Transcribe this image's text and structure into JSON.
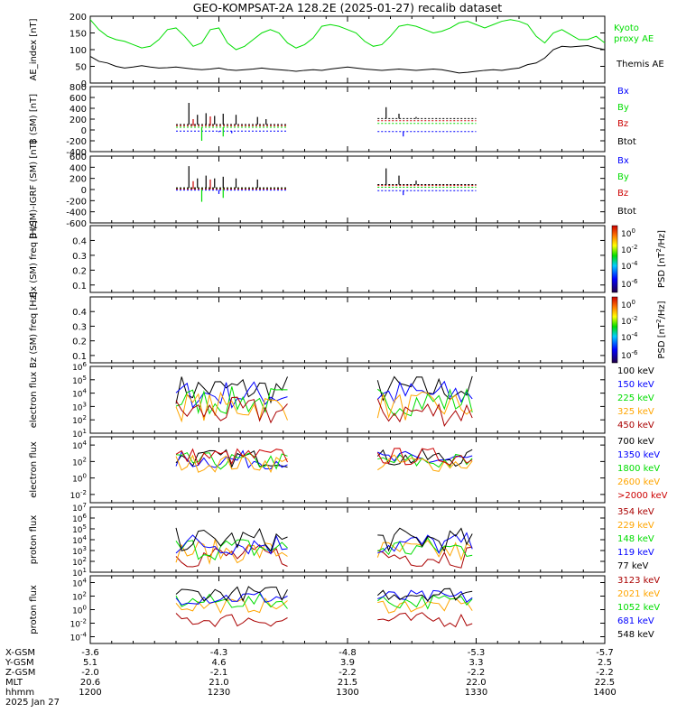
{
  "title": "GEO-KOMPSAT-2A 128.2E (2025-01-27) recalib dataset",
  "colors": {
    "black": "#000000",
    "green": "#00dd00",
    "blue": "#0000ff",
    "red": "#cc0000",
    "orange": "#ffa500",
    "darkred": "#aa0000"
  },
  "time_axis": {
    "ephemeris_labels": [
      "X-GSM",
      "Y-GSM",
      "Z-GSM",
      "MLT",
      "hhmm",
      "2025 Jan 27"
    ],
    "columns": [
      {
        "values": [
          "-3.6",
          "5.1",
          "-2.0",
          "20.6",
          "1200"
        ]
      },
      {
        "values": [
          "-4.3",
          "4.6",
          "-2.1",
          "21.0",
          "1230"
        ]
      },
      {
        "values": [
          "-4.8",
          "3.9",
          "-2.2",
          "21.5",
          "1300"
        ]
      },
      {
        "values": [
          "-5.3",
          "3.3",
          "-2.2",
          "22.0",
          "1330"
        ]
      },
      {
        "values": [
          "-5.7",
          "2.5",
          "-2.2",
          "22.5",
          "1400"
        ]
      }
    ]
  },
  "chart_data": [
    {
      "type": "line",
      "ylabel": "AE_index [nT]",
      "ylim": [
        0,
        200
      ],
      "yticks": [
        "0",
        "50",
        "100",
        "150",
        "200"
      ],
      "series": [
        {
          "name": "Kyoto proxy AE",
          "color": "#00dd00",
          "x": [
            0,
            2,
            4,
            6,
            8,
            10,
            12,
            14,
            16,
            18,
            20,
            22,
            24,
            26,
            28,
            30,
            32,
            34,
            36,
            38,
            40,
            42,
            44,
            46,
            48,
            50,
            52,
            54,
            56,
            58,
            60,
            62,
            64,
            66,
            68,
            70,
            72,
            74,
            76,
            78,
            80,
            82,
            84,
            86,
            88,
            90,
            92,
            94,
            96,
            98,
            100,
            102,
            104,
            106,
            108,
            110,
            112,
            114,
            116,
            118,
            120
          ],
          "values": [
            190,
            160,
            140,
            130,
            125,
            115,
            105,
            110,
            130,
            160,
            165,
            140,
            110,
            120,
            160,
            165,
            120,
            100,
            110,
            130,
            150,
            160,
            150,
            120,
            105,
            115,
            135,
            170,
            175,
            170,
            160,
            150,
            125,
            110,
            115,
            140,
            170,
            175,
            170,
            160,
            150,
            155,
            165,
            180,
            185,
            175,
            165,
            175,
            185,
            190,
            185,
            175,
            140,
            120,
            150,
            160,
            145,
            130,
            130,
            140,
            120
          ]
        },
        {
          "name": "Themis AE",
          "color": "#000000",
          "x": [
            0,
            2,
            4,
            6,
            8,
            10,
            12,
            14,
            16,
            18,
            20,
            22,
            24,
            26,
            28,
            30,
            32,
            34,
            36,
            38,
            40,
            42,
            44,
            46,
            48,
            50,
            52,
            54,
            56,
            58,
            60,
            62,
            64,
            66,
            68,
            70,
            72,
            74,
            76,
            78,
            80,
            82,
            84,
            86,
            88,
            90,
            92,
            94,
            96,
            98,
            100,
            102,
            104,
            106,
            108,
            110,
            112,
            114,
            116,
            118,
            120
          ],
          "values": [
            80,
            65,
            60,
            50,
            45,
            48,
            52,
            48,
            45,
            46,
            48,
            45,
            42,
            40,
            42,
            45,
            40,
            38,
            40,
            42,
            45,
            42,
            40,
            38,
            35,
            38,
            40,
            38,
            42,
            45,
            48,
            45,
            42,
            40,
            38,
            40,
            42,
            40,
            38,
            40,
            42,
            40,
            35,
            30,
            32,
            35,
            38,
            40,
            38,
            42,
            45,
            55,
            60,
            75,
            100,
            110,
            108,
            110,
            112,
            105,
            100
          ]
        }
      ]
    },
    {
      "type": "line",
      "ylabel": "B (SM) [nT]",
      "ylim": [
        -400,
        800
      ],
      "yticks": [
        "-400",
        "-200",
        "0",
        "200",
        "400",
        "600",
        "800"
      ],
      "segments": [
        [
          20,
          46
        ],
        [
          67,
          90
        ]
      ],
      "series": [
        {
          "name": "Bx",
          "color": "#0000ff",
          "levels": [
            -20,
            -30
          ],
          "spikes": [
            [
              30,
              -40
            ],
            [
              33,
              -60
            ],
            [
              73,
              -120
            ]
          ]
        },
        {
          "name": "By",
          "color": "#00dd00",
          "levels": [
            50,
            120
          ],
          "spikes": [
            [
              26,
              -200
            ],
            [
              31,
              -120
            ]
          ]
        },
        {
          "name": "Bz",
          "color": "#cc0000",
          "levels": [
            80,
            170
          ],
          "spikes": [
            [
              24,
              200
            ],
            [
              28,
              250
            ]
          ]
        },
        {
          "name": "Btot",
          "color": "#000000",
          "levels": [
            100,
            210
          ],
          "spikes": [
            [
              23,
              500
            ],
            [
              25,
              280
            ],
            [
              27,
              310
            ],
            [
              29,
              260
            ],
            [
              31,
              300
            ],
            [
              34,
              280
            ],
            [
              39,
              240
            ],
            [
              41,
              200
            ],
            [
              69,
              420
            ],
            [
              72,
              300
            ],
            [
              76,
              240
            ]
          ]
        }
      ]
    },
    {
      "type": "line",
      "ylabel": "B (SM)-IGRF (SM) [nT]",
      "ylim": [
        -600,
        600
      ],
      "yticks": [
        "-600",
        "-400",
        "-200",
        "0",
        "200",
        "400",
        "600"
      ],
      "segments": [
        [
          20,
          46
        ],
        [
          67,
          90
        ]
      ],
      "series": [
        {
          "name": "Bx",
          "color": "#0000ff",
          "levels": [
            -10,
            -20
          ],
          "spikes": [
            [
              30,
              -80
            ],
            [
              73,
              -100
            ]
          ]
        },
        {
          "name": "By",
          "color": "#00dd00",
          "levels": [
            20,
            40
          ],
          "spikes": [
            [
              26,
              -220
            ],
            [
              31,
              -150
            ]
          ]
        },
        {
          "name": "Bz",
          "color": "#cc0000",
          "levels": [
            10,
            70
          ],
          "spikes": [
            [
              24,
              150
            ],
            [
              28,
              180
            ]
          ]
        },
        {
          "name": "Btot",
          "color": "#000000",
          "levels": [
            30,
            90
          ],
          "spikes": [
            [
              23,
              420
            ],
            [
              25,
              200
            ],
            [
              27,
              250
            ],
            [
              29,
              200
            ],
            [
              31,
              230
            ],
            [
              34,
              200
            ],
            [
              39,
              180
            ],
            [
              69,
              380
            ],
            [
              72,
              250
            ],
            [
              76,
              160
            ]
          ]
        }
      ]
    },
    {
      "type": "heatmap",
      "ylabel": "Bx (SM) freq [Hz]",
      "ylim": [
        0.05,
        0.5
      ],
      "yticks": [
        "0.1",
        "0.2",
        "0.3",
        "0.4"
      ],
      "colorbar": {
        "label": "PSD [nT^2/Hz]",
        "ticks": [
          "10^0",
          "10^-2",
          "10^-4",
          "10^-6"
        ]
      }
    },
    {
      "type": "heatmap",
      "ylabel": "Bz (SM) freq [Hz]",
      "ylim": [
        0.05,
        0.5
      ],
      "yticks": [
        "0.1",
        "0.2",
        "0.3",
        "0.4"
      ],
      "colorbar": {
        "label": "PSD [nT^2/Hz]",
        "ticks": [
          "10^0",
          "10^-2",
          "10^-4",
          "10^-6"
        ]
      }
    },
    {
      "type": "line",
      "ylabel": "electron flux",
      "ylog": [
        1,
        6
      ],
      "yticks": [
        "10^1",
        "10^2",
        "10^3",
        "10^4",
        "10^5",
        "10^6"
      ],
      "segments": [
        [
          20,
          46
        ],
        [
          67,
          90
        ]
      ],
      "series": [
        {
          "name": "100 keV",
          "color": "#000000",
          "mean": 4.3
        },
        {
          "name": "150 keV",
          "color": "#0000ff",
          "mean": 3.9
        },
        {
          "name": "225 keV",
          "color": "#00dd00",
          "mean": 3.4
        },
        {
          "name": "325 keV",
          "color": "#ffa500",
          "mean": 3.0
        },
        {
          "name": "450 keV",
          "color": "#aa0000",
          "mean": 2.6
        }
      ]
    },
    {
      "type": "line",
      "ylabel": "electron flux",
      "ylog": [
        -3,
        5
      ],
      "yticks": [
        "10^-2",
        "10^0",
        "10^2",
        "10^4"
      ],
      "segments": [
        [
          20,
          46
        ],
        [
          67,
          90
        ]
      ],
      "series": [
        {
          "name": "700 keV",
          "color": "#000000",
          "mean": 2.4
        },
        {
          "name": "1350 keV",
          "color": "#0000ff",
          "mean": 2.2
        },
        {
          "name": "1800 keV",
          "color": "#00dd00",
          "mean": 2.0
        },
        {
          "name": "2600 keV",
          "color": "#ffa500",
          "mean": 1.8
        },
        {
          "name": ">2000 keV",
          "color": "#cc0000",
          "mean": 2.6
        }
      ]
    },
    {
      "type": "line",
      "ylabel": "proton flux",
      "ylog": [
        1,
        7
      ],
      "yticks": [
        "10^1",
        "10^2",
        "10^3",
        "10^4",
        "10^5",
        "10^6",
        "10^7"
      ],
      "segments": [
        [
          20,
          46
        ],
        [
          67,
          90
        ]
      ],
      "series": [
        {
          "name": "354 keV",
          "color": "#aa0000",
          "mean": 2.5
        },
        {
          "name": "229 keV",
          "color": "#ffa500",
          "mean": 2.9
        },
        {
          "name": "148 keV",
          "color": "#00dd00",
          "mean": 3.2
        },
        {
          "name": "119 keV",
          "color": "#0000ff",
          "mean": 3.6
        },
        {
          "name": "77 keV",
          "color": "#000000",
          "mean": 4.0
        }
      ]
    },
    {
      "type": "line",
      "ylabel": "proton flux",
      "ylog": [
        -5,
        5
      ],
      "yticks": [
        "10^-4",
        "10^-2",
        "10^0",
        "10^2",
        "10^4"
      ],
      "segments": [
        [
          20,
          46
        ],
        [
          67,
          90
        ]
      ],
      "series": [
        {
          "name": "3123 keV",
          "color": "#aa0000",
          "mean": -1.5
        },
        {
          "name": "2021 keV",
          "color": "#ffa500",
          "mean": 0.6
        },
        {
          "name": "1052 keV",
          "color": "#00dd00",
          "mean": 1.2
        },
        {
          "name": "681 keV",
          "color": "#0000ff",
          "mean": 1.8
        },
        {
          "name": "548 keV",
          "color": "#000000",
          "mean": 2.4
        }
      ]
    }
  ]
}
